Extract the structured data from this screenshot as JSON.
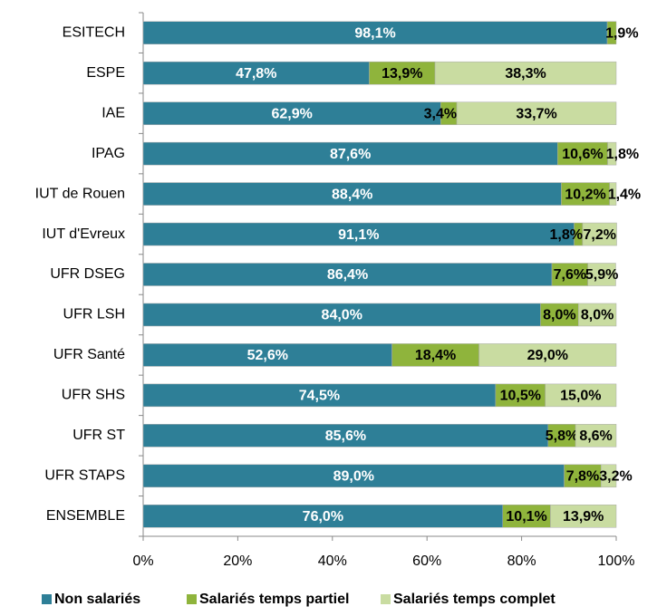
{
  "chart_data": {
    "type": "stacked-bar",
    "orientation": "horizontal",
    "categories": [
      "ESITECH",
      "ESPE",
      "IAE",
      "IPAG",
      "IUT de Rouen",
      "IUT d'Evreux",
      "UFR DSEG",
      "UFR LSH",
      "UFR Santé",
      "UFR SHS",
      "UFR ST",
      "UFR STAPS",
      "ENSEMBLE"
    ],
    "series": [
      {
        "name": "Non salariés",
        "color": "#2e7f97",
        "values": [
          98.1,
          47.8,
          62.9,
          87.6,
          88.4,
          91.1,
          86.4,
          84.0,
          52.6,
          74.5,
          85.6,
          89.0,
          76.0
        ],
        "value_labels": [
          "98,1%",
          "47,8%",
          "62,9%",
          "87,6%",
          "88,4%",
          "91,1%",
          "86,4%",
          "84,0%",
          "52,6%",
          "74,5%",
          "85,6%",
          "89,0%",
          "76,0%"
        ]
      },
      {
        "name": "Salariés temps partiel",
        "color": "#8fb43c",
        "values": [
          1.9,
          13.9,
          3.4,
          10.6,
          10.2,
          1.8,
          7.6,
          8.0,
          18.4,
          10.5,
          5.8,
          7.8,
          10.1
        ],
        "value_labels": [
          "1,9%",
          "13,9%",
          "3,4%",
          "10,6%",
          "10,2%",
          "1,8%",
          "7,6%",
          "8,0%",
          "18,4%",
          "10,5%",
          "5,8%",
          "7,8%",
          "10,1%"
        ]
      },
      {
        "name": "Salariés temps complet",
        "color": "#c9dca1",
        "values": [
          null,
          38.3,
          33.7,
          1.8,
          1.4,
          7.2,
          5.9,
          8.0,
          29.0,
          15.0,
          8.6,
          3.2,
          13.9
        ],
        "value_labels": [
          null,
          "38,3%",
          "33,7%",
          "1,8%",
          "1,4%",
          "7,2%",
          "5,9%",
          "8,0%",
          "29,0%",
          "15,0%",
          "8,6%",
          "3,2%",
          "13,9%"
        ]
      }
    ],
    "xlim": [
      0,
      100
    ],
    "xticks": [
      {
        "value": 0,
        "label": "0%"
      },
      {
        "value": 20,
        "label": "20%"
      },
      {
        "value": 40,
        "label": "40%"
      },
      {
        "value": 60,
        "label": "60%"
      },
      {
        "value": 80,
        "label": "80%"
      },
      {
        "value": 100,
        "label": "100%"
      }
    ],
    "legend": "bottom"
  }
}
